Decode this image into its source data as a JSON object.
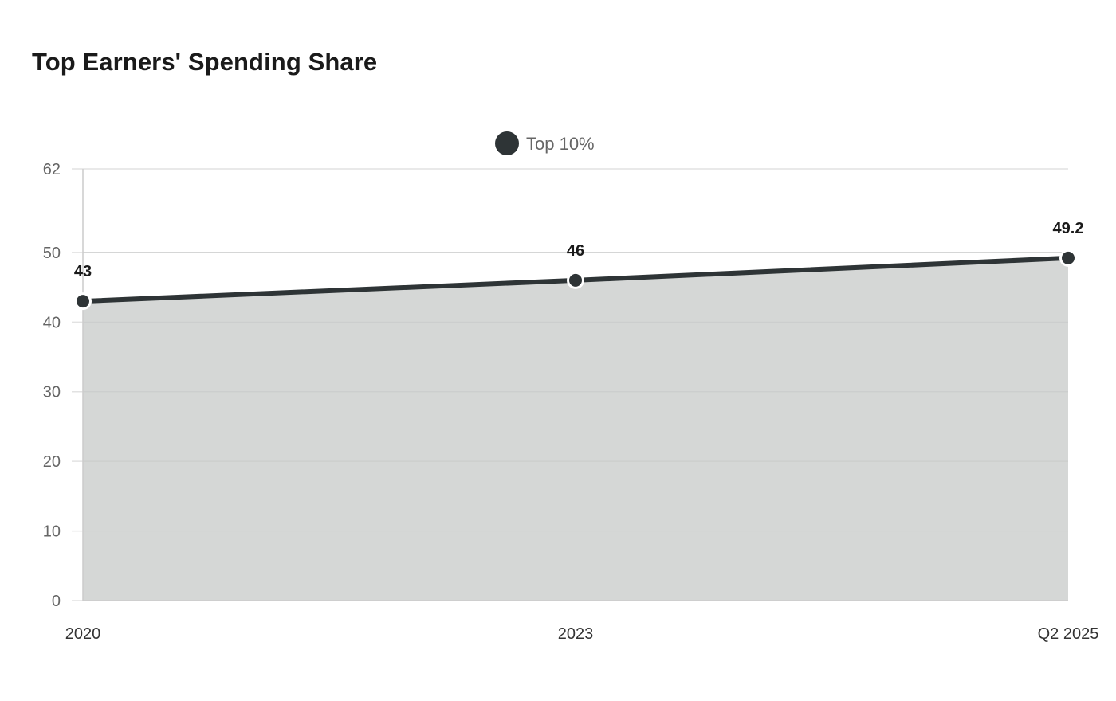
{
  "chart_data": {
    "type": "area",
    "title": "Top Earners' Spending Share",
    "categories": [
      "2020",
      "2023",
      "Q2 2025"
    ],
    "series": [
      {
        "name": "Top 10%",
        "values": [
          43,
          46,
          49.2
        ],
        "data_labels": [
          "43",
          "46",
          "49.2"
        ],
        "color": "#2e3436",
        "fill_color": "#d5d7d6"
      }
    ],
    "ylim": [
      0,
      62
    ],
    "yticks": [
      0,
      10,
      20,
      30,
      40,
      50,
      62
    ],
    "ytick_labels": [
      "0",
      "10",
      "20",
      "30",
      "40",
      "50",
      "62"
    ],
    "xlabel": "",
    "ylabel": "",
    "grid": true,
    "legend_position": "top-center"
  },
  "colors": {
    "grid": "#e2e2e2",
    "axis": "#cccccc",
    "marker_stroke": "#ffffff"
  }
}
